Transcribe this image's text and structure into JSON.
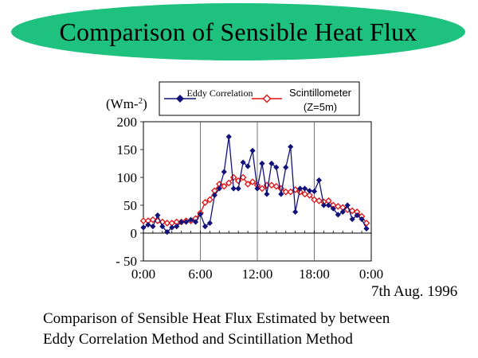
{
  "slide": {
    "title": "Comparison of Sensible Heat Flux",
    "date": "7th Aug. 1996",
    "caption_line1": "Comparison of Sensible Heat Flux Estimated by between",
    "caption_line2": "Eddy Correlation Method and Scintillation Method"
  },
  "colors": {
    "title_oval": "#1ec27e",
    "eddy_series": "#12127a",
    "scintillometer_series": "#e01010"
  },
  "chart_data": {
    "type": "line",
    "title": "",
    "xlabel": "",
    "ylabel": "(Wm-2)",
    "ylim": [
      -50,
      200
    ],
    "xlim": [
      0,
      24
    ],
    "yticks": [
      -50,
      0,
      50,
      100,
      150,
      200
    ],
    "ytick_labels": [
      "- 50",
      "0",
      "50",
      "100",
      "150",
      "200"
    ],
    "xticks": [
      0,
      6,
      12,
      18,
      24
    ],
    "xtick_labels": [
      "0:00",
      "6:00",
      "12:00",
      "18:00",
      "0:00"
    ],
    "grid": "vertical lines at 6:00, 12:00, 18:00",
    "legend_position": "top",
    "series": [
      {
        "name": "Eddy Correlation",
        "marker": "diamond-filled",
        "x": [
          0.0,
          0.5,
          1.0,
          1.5,
          2.0,
          2.5,
          3.0,
          3.5,
          4.0,
          4.5,
          5.0,
          5.5,
          6.0,
          6.5,
          7.0,
          7.5,
          8.0,
          8.5,
          9.0,
          9.5,
          10.0,
          10.5,
          11.0,
          11.5,
          12.0,
          12.5,
          13.0,
          13.5,
          14.0,
          14.5,
          15.0,
          15.5,
          16.0,
          16.5,
          17.0,
          17.5,
          18.0,
          18.5,
          19.0,
          19.5,
          20.0,
          20.5,
          21.0,
          21.5,
          22.0,
          22.5,
          23.0,
          23.5
        ],
        "y": [
          10,
          15,
          12,
          32,
          12,
          2,
          10,
          12,
          20,
          20,
          24,
          20,
          34,
          12,
          18,
          68,
          80,
          110,
          173,
          80,
          80,
          127,
          120,
          148,
          80,
          125,
          70,
          125,
          118,
          70,
          118,
          155,
          38,
          80,
          80,
          76,
          75,
          95,
          50,
          50,
          44,
          33,
          38,
          50,
          25,
          32,
          25,
          8
        ]
      },
      {
        "name": "Scintillometer",
        "sublabel": "(Z=5m)",
        "marker": "diamond-open",
        "x": [
          0.0,
          0.5,
          1.0,
          1.5,
          2.0,
          2.5,
          3.0,
          3.5,
          4.0,
          4.5,
          5.0,
          5.5,
          6.0,
          6.5,
          7.0,
          7.5,
          8.0,
          8.5,
          9.0,
          9.5,
          10.0,
          10.5,
          11.0,
          11.5,
          12.0,
          12.5,
          13.0,
          13.5,
          14.0,
          14.5,
          15.0,
          15.5,
          16.0,
          16.5,
          17.0,
          17.5,
          18.0,
          18.5,
          19.0,
          19.5,
          20.0,
          20.5,
          21.0,
          21.5,
          22.0,
          22.5,
          23.0,
          23.5
        ],
        "y": [
          22,
          22,
          24,
          22,
          20,
          18,
          18,
          20,
          20,
          22,
          22,
          26,
          36,
          55,
          60,
          76,
          88,
          84,
          90,
          100,
          94,
          100,
          88,
          92,
          86,
          80,
          86,
          86,
          84,
          80,
          74,
          74,
          78,
          74,
          70,
          68,
          60,
          58,
          56,
          58,
          50,
          48,
          46,
          42,
          40,
          38,
          30,
          18
        ]
      }
    ]
  }
}
